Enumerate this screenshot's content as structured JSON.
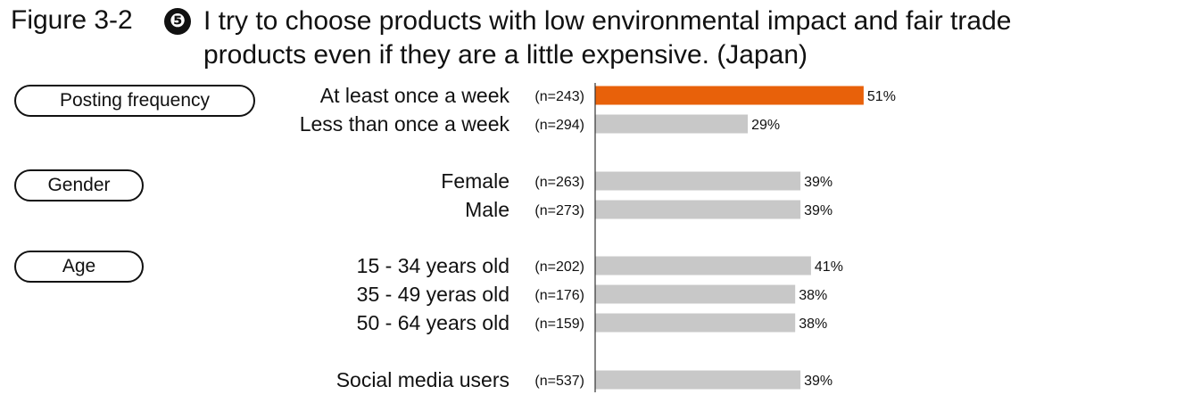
{
  "figure_label": "Figure 3-2",
  "title_icon": "❺",
  "title_line1": "I try to choose products with low environmental impact and fair trade",
  "title_line2": "products even if they are a little expensive. (Japan)",
  "groups": [
    "Posting frequency",
    "Gender",
    "Age"
  ],
  "colors": {
    "highlight": "#E8610A",
    "bar": "#C8C8C8",
    "axis": "#333333"
  },
  "chart_data": {
    "type": "bar",
    "orientation": "horizontal",
    "xlim": [
      0,
      100
    ],
    "categories": [
      "At least once a week",
      "Less than once a week",
      "Female",
      "Male",
      "15 - 34 years old",
      "35 - 49 yeras old",
      "50 - 64 years old",
      "Social media users"
    ],
    "sample_sizes": [
      "(n=243)",
      "(n=294)",
      "(n=263)",
      "(n=273)",
      "(n=202)",
      "(n=176)",
      "(n=159)",
      "(n=537)"
    ],
    "values": [
      51,
      29,
      39,
      39,
      41,
      38,
      38,
      39
    ],
    "value_labels": [
      "51%",
      "29%",
      "39%",
      "39%",
      "41%",
      "38%",
      "38%",
      "39%"
    ],
    "highlight_index": 0
  }
}
